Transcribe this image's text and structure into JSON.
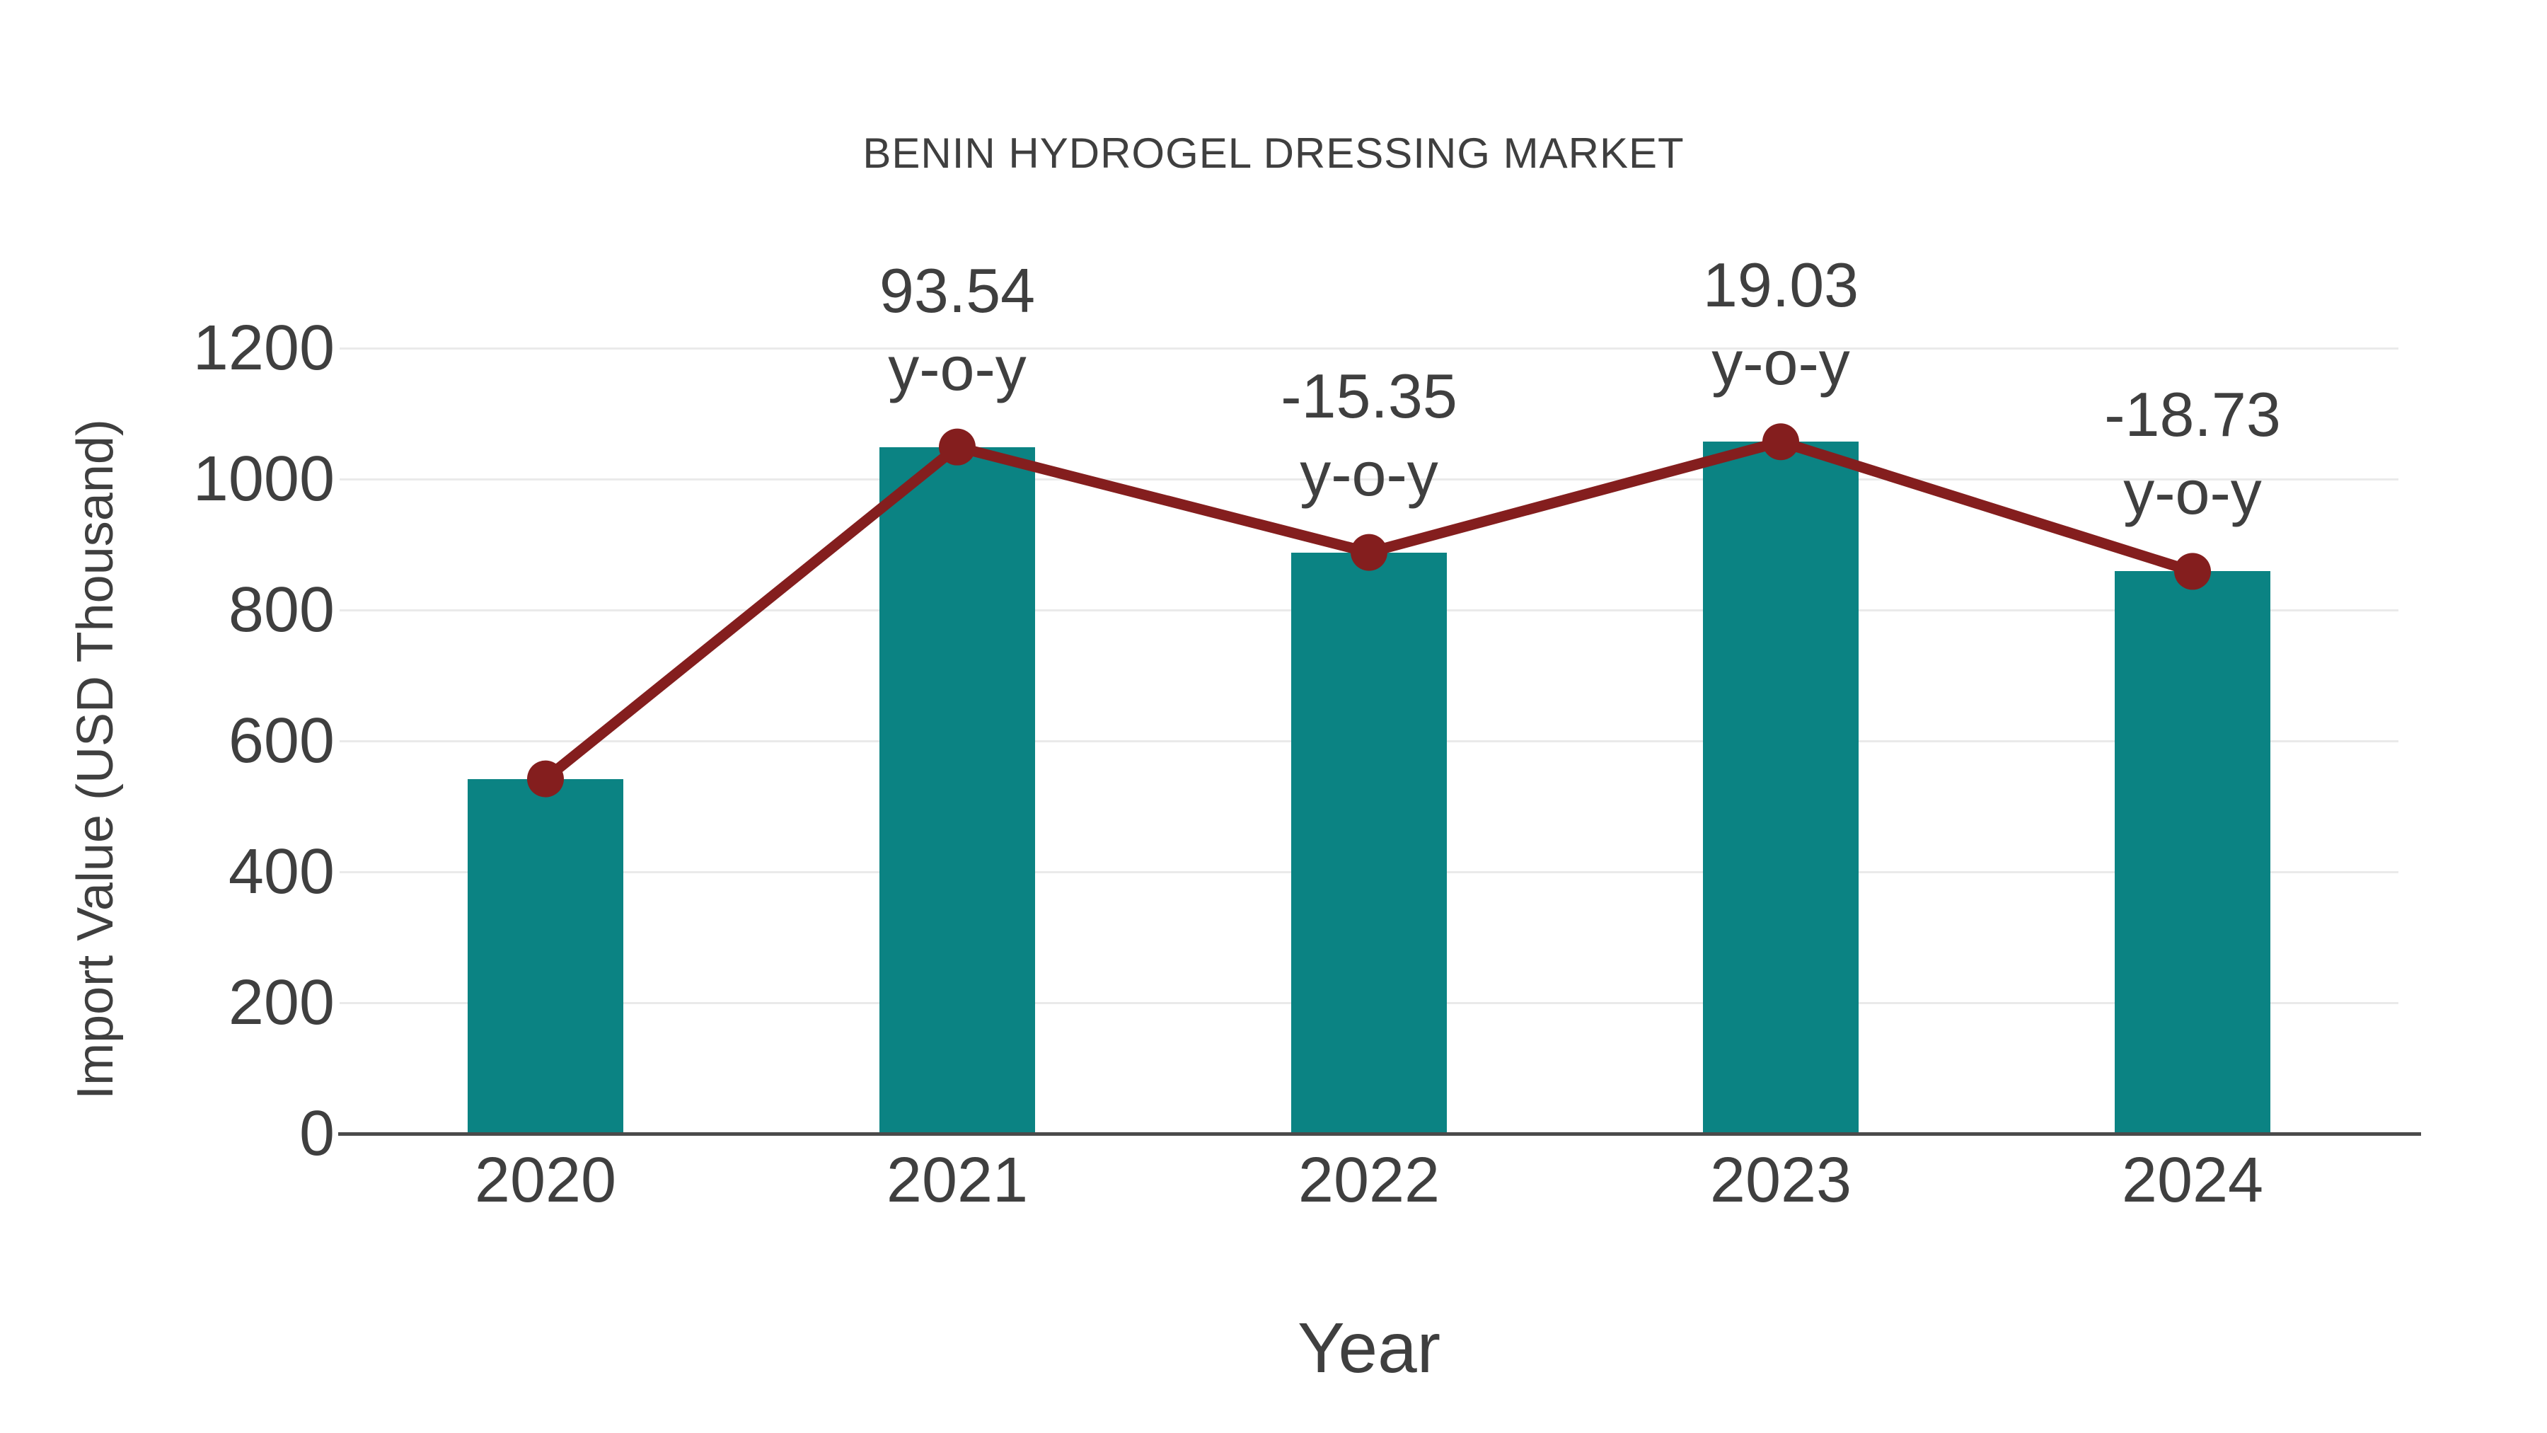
{
  "page": {
    "background": "#ffffff"
  },
  "chart_data": {
    "type": "bar",
    "title": "BENIN HYDROGEL DRESSING MARKET",
    "xlabel": "Year",
    "ylabel": "Import Value (USD Thousand)",
    "categories": [
      "2020",
      "2021",
      "2022",
      "2023",
      "2024"
    ],
    "series": [
      {
        "name": "Import Value bars",
        "type": "bar",
        "values": [
          542,
          1049,
          888,
          1057,
          859
        ]
      },
      {
        "name": "Import Value trend line",
        "type": "line",
        "values": [
          542,
          1049,
          888,
          1057,
          859
        ]
      }
    ],
    "annotations": [
      {
        "category": "2021",
        "line1": "93.54",
        "line2": "y-o-y"
      },
      {
        "category": "2022",
        "line1": "-15.35",
        "line2": "y-o-y"
      },
      {
        "category": "2023",
        "line1": "19.03",
        "line2": "y-o-y"
      },
      {
        "category": "2024",
        "line1": "-18.73",
        "line2": "y-o-y"
      }
    ],
    "ylim": [
      0,
      1200
    ],
    "yticks": [
      0,
      200,
      400,
      600,
      800,
      1000,
      1200
    ],
    "grid": true,
    "legend": false,
    "colors": {
      "bar": "#0B8383",
      "line": "#841E1E",
      "marker": "#841E1E",
      "grid": "#EAEAEA",
      "axis_line": "#4A4A4A",
      "text": "#3F3F3F"
    }
  }
}
